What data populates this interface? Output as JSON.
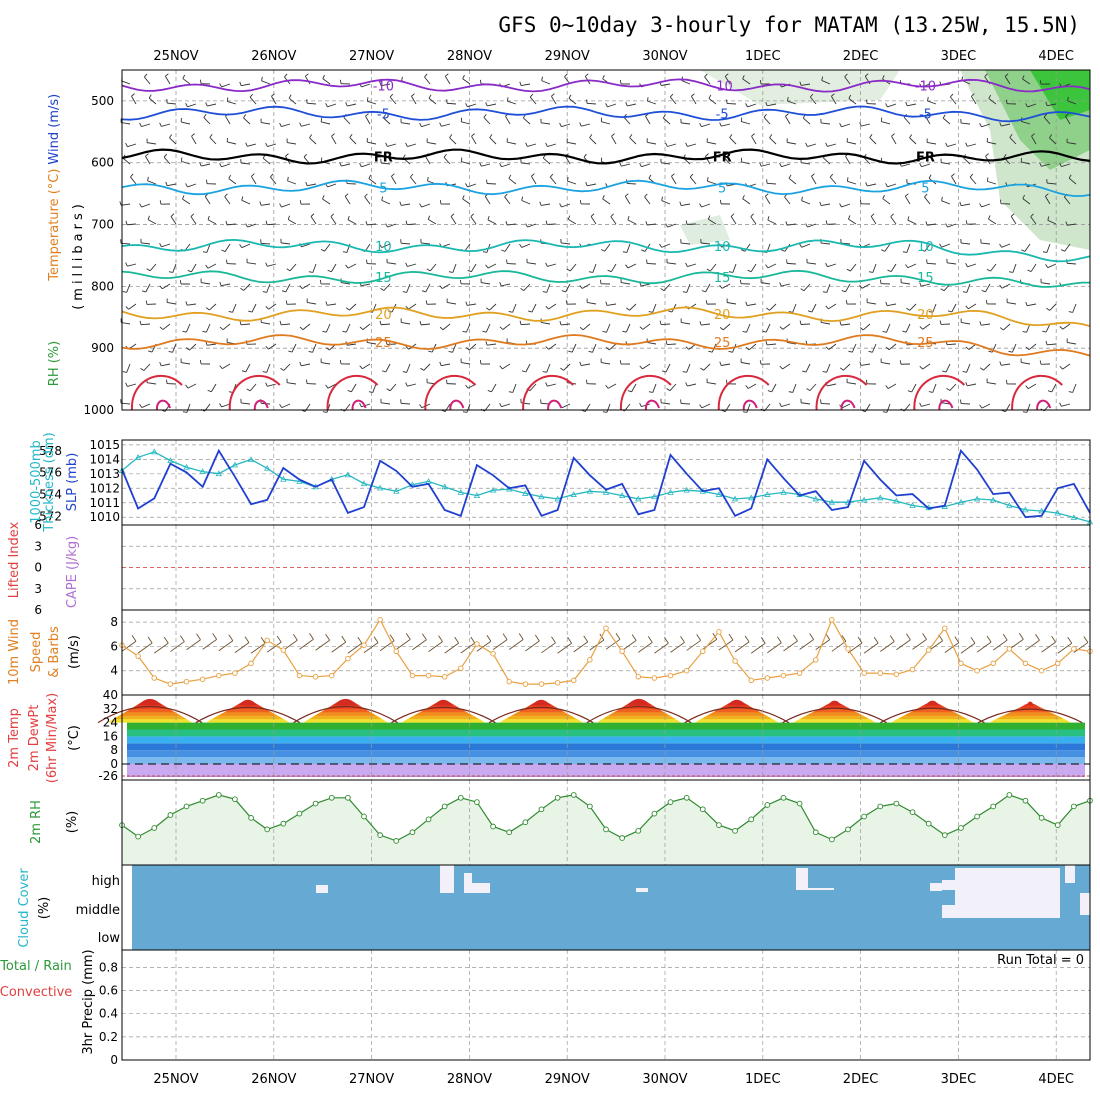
{
  "title": "GFS 0~10day 3-hourly for MATAM (13.25W, 15.5N)",
  "colors": {
    "grid": "#9a9a9a",
    "purple": "#8a2bc8",
    "blue": "#1f4fd8",
    "cyan": "#1aa3e0",
    "teal": "#19b8b0",
    "green15": "#19b89a",
    "orange20": "#e0a020",
    "orange25": "#e07a1f",
    "red": "#d8283c",
    "slp": "#1f3fd0",
    "thick": "#27b8c0",
    "wind10": "#e8a040",
    "rh2m": "#2f8a2f",
    "cloud": "#66aad4",
    "label_red": "#e04040",
    "label_orange": "#e08020",
    "label_purple": "#b070d0",
    "label_green": "#2c9a3a",
    "label_cyan": "#22b8c8",
    "label_blue": "#2244cc"
  },
  "chart_data": [
    {
      "type": "line",
      "name": "upper_air",
      "x": [
        "25NOV",
        "26NOV",
        "27NOV",
        "28NOV",
        "29NOV",
        "30NOV",
        "1DEC",
        "2DEC",
        "3DEC",
        "4DEC"
      ],
      "ylabel": "(millibars)",
      "yticks": [
        500,
        600,
        700,
        800,
        900,
        1000
      ],
      "ylim": [
        1000,
        450
      ],
      "contours": [
        {
          "label": "-10",
          "level_mb": 475
        },
        {
          "label": "-5",
          "level_mb": 520
        },
        {
          "label": "FR",
          "level_mb": 590
        },
        {
          "label": "5",
          "level_mb": 640
        },
        {
          "label": "10",
          "level_mb": 735
        },
        {
          "label": "15",
          "level_mb": 785
        },
        {
          "label": "20",
          "level_mb": 845
        },
        {
          "label": "25",
          "level_mb": 890
        }
      ],
      "side_labels": [
        "RH (%)",
        "Temperature (°C)",
        "Wind (m/s)"
      ]
    },
    {
      "type": "line",
      "name": "slp_thickness",
      "left_ticks": [
        572,
        574,
        576,
        578
      ],
      "right_ticks": [
        1010,
        1011,
        1012,
        1013,
        1014,
        1015
      ],
      "left_label": "1000-500mb Thickness (dm)",
      "right_label": "SLP (mb)",
      "slp": [
        1013.3,
        1010.6,
        1011.3,
        1013.7,
        1013.1,
        1012.1,
        1014.6,
        1012.8,
        1010.9,
        1011.2,
        1013.4,
        1012.6,
        1012.1,
        1012.6,
        1010.3,
        1010.7,
        1013.9,
        1013.2,
        1012.1,
        1012.3,
        1010.5,
        1010.1,
        1013.6,
        1012.9,
        1012.0,
        1012.2,
        1010.1,
        1010.5,
        1014.1,
        1012.9,
        1011.9,
        1012.3,
        1010.2,
        1010.5,
        1014.3,
        1013.0,
        1011.8,
        1012.0,
        1010.1,
        1010.6,
        1014.0,
        1012.7,
        1011.5,
        1011.8,
        1010.5,
        1010.7,
        1013.9,
        1012.6,
        1011.5,
        1011.6,
        1010.6,
        1010.8,
        1014.6,
        1013.3,
        1011.6,
        1011.7,
        1010.0,
        1010.1,
        1012.0,
        1012.3,
        1010.3
      ],
      "thickness": [
        576.2,
        577.4,
        577.9,
        577.1,
        576.5,
        576.1,
        575.9,
        576.7,
        577.2,
        576.4,
        575.4,
        575.2,
        574.7,
        575.4,
        575.8,
        575.0,
        574.6,
        574.3,
        574.9,
        575.2,
        574.7,
        574.2,
        573.9,
        574.4,
        574.5,
        574.1,
        573.8,
        573.6,
        574.0,
        574.3,
        574.2,
        573.9,
        573.6,
        573.8,
        574.2,
        574.4,
        574.3,
        574.0,
        573.6,
        573.7,
        574.0,
        574.2,
        574.0,
        573.6,
        573.3,
        573.3,
        573.5,
        573.7,
        573.4,
        573.0,
        572.8,
        572.9,
        573.3,
        573.6,
        573.5,
        573.0,
        572.6,
        572.5,
        572.3,
        571.9,
        571.5
      ]
    },
    {
      "type": "line",
      "name": "li_cape",
      "yticks": [
        -6,
        -3,
        0,
        3,
        6
      ],
      "left_label": "Lifted Index",
      "right_label": "CAPE (J/kg)",
      "li": [
        0
      ]
    },
    {
      "type": "line",
      "name": "wind10m",
      "yticks": [
        4,
        6,
        8
      ],
      "ylim": [
        2,
        9
      ],
      "left_label": "10m Wind Speed & Barbs",
      "unit": "(m/s)",
      "speed": [
        6.1,
        5.2,
        3.4,
        2.9,
        3.1,
        3.3,
        3.6,
        3.8,
        4.6,
        6.5,
        5.7,
        3.6,
        3.5,
        3.6,
        5.0,
        6.1,
        8.2,
        5.6,
        3.6,
        3.6,
        3.5,
        4.2,
        6.2,
        5.4,
        3.1,
        2.9,
        2.9,
        3.0,
        3.2,
        4.9,
        7.5,
        5.6,
        3.5,
        3.4,
        3.6,
        4.0,
        5.6,
        7.2,
        4.8,
        3.2,
        3.4,
        3.6,
        3.8,
        4.9,
        8.2,
        5.8,
        3.8,
        3.8,
        3.7,
        4.1,
        5.7,
        7.5,
        4.6,
        4.0,
        4.6,
        5.8,
        4.6,
        4.0,
        4.6,
        5.8,
        5.6
      ]
    },
    {
      "type": "area",
      "name": "temp2m",
      "yticks": [
        40,
        32,
        24,
        16,
        8,
        0,
        -26
      ],
      "tick_labels": [
        "40",
        "32",
        "24",
        "16",
        "8",
        "0",
        "-26"
      ],
      "left_label": "2m Temp 2m DewPt (6hr Min/Max)",
      "unit": "(°C)",
      "temp_max": [
        38,
        37,
        38,
        37,
        37,
        38,
        37,
        36,
        36,
        35
      ]
    },
    {
      "type": "area",
      "name": "rh2m",
      "left_label": "2m RH",
      "unit": "(%)",
      "rh": [
        25,
        17,
        23,
        32,
        38,
        42,
        46,
        43,
        30,
        22,
        26,
        33,
        40,
        44,
        44,
        31,
        18,
        14,
        20,
        29,
        38,
        44,
        41,
        24,
        20,
        27,
        36,
        44,
        46,
        38,
        22,
        16,
        21,
        33,
        41,
        44,
        36,
        25,
        21,
        29,
        39,
        44,
        40,
        20,
        15,
        22,
        31,
        38,
        40,
        34,
        26,
        18,
        23,
        31,
        38,
        46,
        42,
        30,
        25,
        38,
        42
      ]
    },
    {
      "type": "heatmap",
      "name": "cloud",
      "yticks": [
        "high",
        "middle",
        "low"
      ],
      "left_label": "Cloud Cover",
      "unit": "(%)"
    },
    {
      "type": "bar",
      "name": "precip",
      "yticks": [
        0,
        0.2,
        0.4,
        0.6,
        0.8
      ],
      "left_label": "3hr Precip (mm)",
      "legend": [
        "Total / Rain",
        "Convective"
      ],
      "run_total": "Run Total = 0"
    }
  ]
}
